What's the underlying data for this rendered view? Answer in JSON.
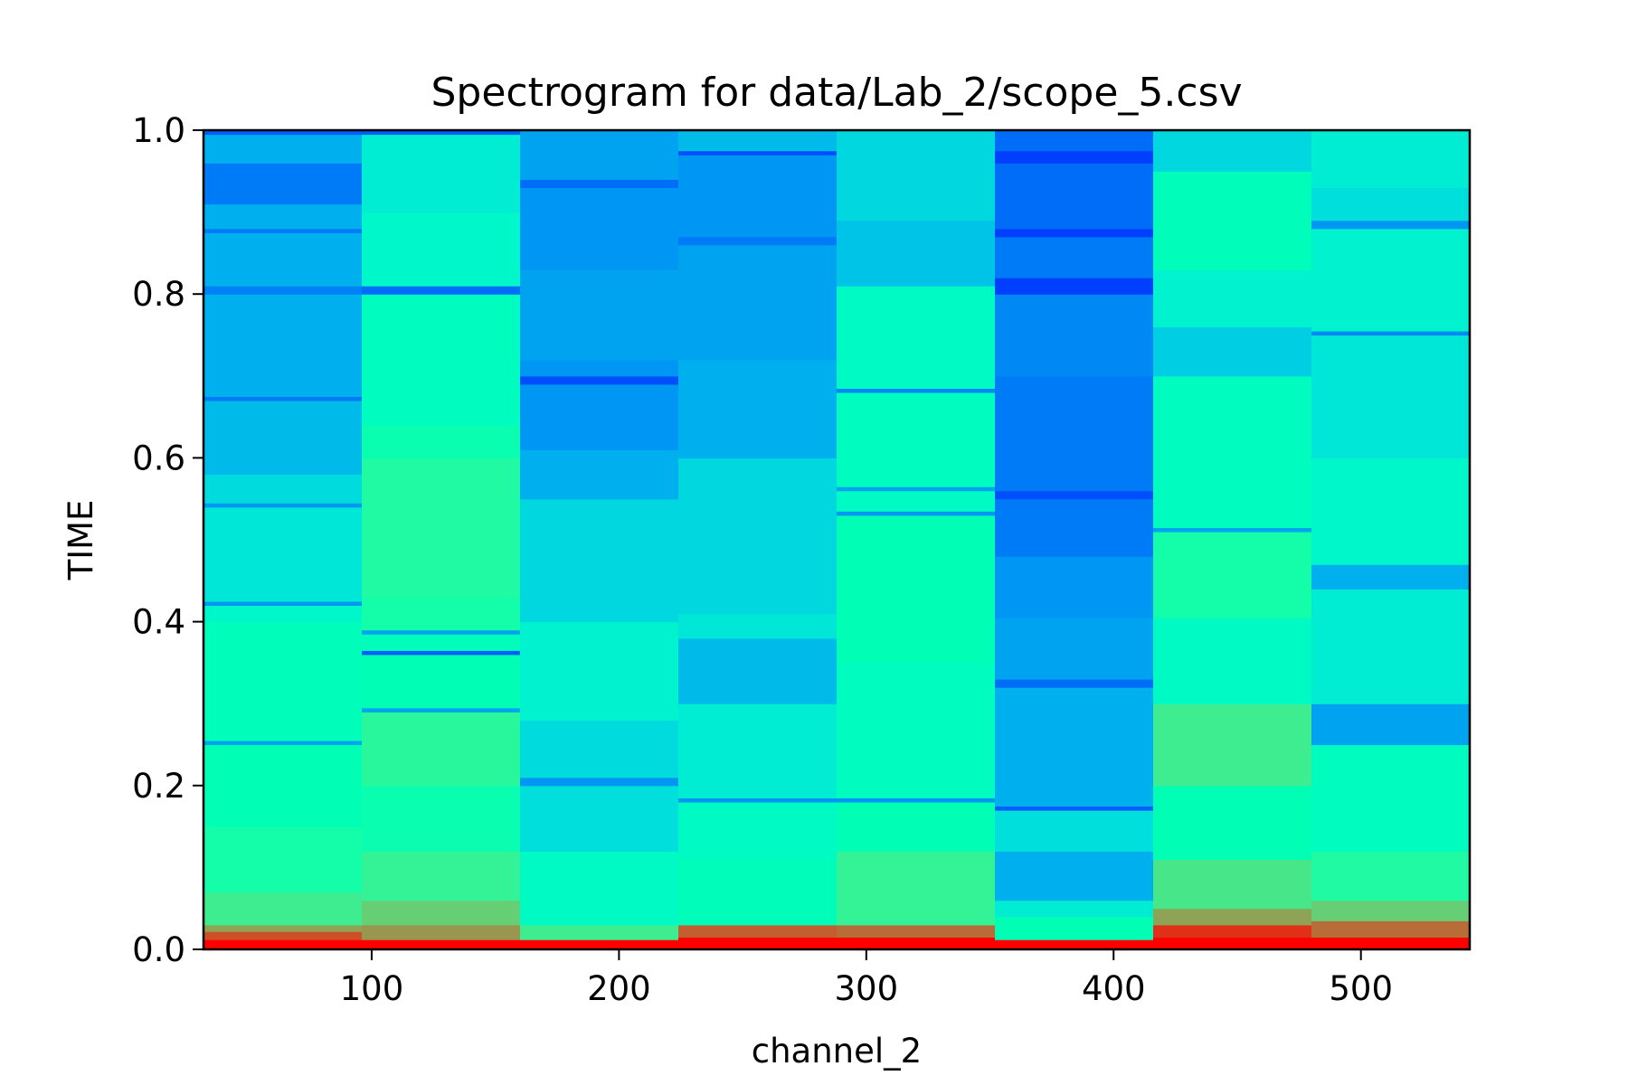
{
  "chart_data": {
    "type": "heatmap",
    "title": "Spectrogram for data/Lab_2/scope_5.csv",
    "xlabel": "channel_2",
    "ylabel": "TIME",
    "xlim": [
      32,
      544
    ],
    "ylim": [
      0.0,
      1.0
    ],
    "x_ticks": [
      100,
      200,
      300,
      400,
      500
    ],
    "x_tick_labels": [
      "100",
      "200",
      "300",
      "400",
      "500"
    ],
    "y_ticks": [
      0.0,
      0.2,
      0.4,
      0.6,
      0.8,
      1.0
    ],
    "y_tick_labels": [
      "0.0",
      "0.2",
      "0.4",
      "0.6",
      "0.8",
      "1.0"
    ],
    "colormap": "rainbow",
    "columns": [
      {
        "x_start": 32,
        "x_end": 96,
        "bands": [
          {
            "from": 0.0,
            "to": 0.012,
            "v": 1.0
          },
          {
            "from": 0.012,
            "to": 0.022,
            "v": 0.9
          },
          {
            "from": 0.022,
            "to": 0.03,
            "v": 0.78
          },
          {
            "from": 0.03,
            "to": 0.04,
            "v": 0.62
          },
          {
            "from": 0.04,
            "to": 0.07,
            "v": 0.62
          },
          {
            "from": 0.07,
            "to": 0.15,
            "v": 0.54
          },
          {
            "from": 0.15,
            "to": 0.25,
            "v": 0.5
          },
          {
            "from": 0.25,
            "to": 0.255,
            "v": 0.22
          },
          {
            "from": 0.255,
            "to": 0.4,
            "v": 0.48
          },
          {
            "from": 0.4,
            "to": 0.42,
            "v": 0.42
          },
          {
            "from": 0.42,
            "to": 0.425,
            "v": 0.2
          },
          {
            "from": 0.425,
            "to": 0.54,
            "v": 0.36
          },
          {
            "from": 0.54,
            "to": 0.545,
            "v": 0.2
          },
          {
            "from": 0.545,
            "to": 0.58,
            "v": 0.33
          },
          {
            "from": 0.58,
            "to": 0.67,
            "v": 0.26
          },
          {
            "from": 0.67,
            "to": 0.675,
            "v": 0.16
          },
          {
            "from": 0.675,
            "to": 0.8,
            "v": 0.24
          },
          {
            "from": 0.8,
            "to": 0.81,
            "v": 0.17
          },
          {
            "from": 0.81,
            "to": 0.875,
            "v": 0.24
          },
          {
            "from": 0.875,
            "to": 0.88,
            "v": 0.16
          },
          {
            "from": 0.88,
            "to": 0.91,
            "v": 0.24
          },
          {
            "from": 0.91,
            "to": 0.96,
            "v": 0.16
          },
          {
            "from": 0.96,
            "to": 0.995,
            "v": 0.24
          },
          {
            "from": 0.995,
            "to": 1.0,
            "v": 0.12
          }
        ]
      },
      {
        "x_start": 96,
        "x_end": 160,
        "bands": [
          {
            "from": 0.0,
            "to": 0.012,
            "v": 1.0
          },
          {
            "from": 0.012,
            "to": 0.03,
            "v": 0.8
          },
          {
            "from": 0.03,
            "to": 0.06,
            "v": 0.7
          },
          {
            "from": 0.06,
            "to": 0.12,
            "v": 0.6
          },
          {
            "from": 0.12,
            "to": 0.2,
            "v": 0.52
          },
          {
            "from": 0.2,
            "to": 0.29,
            "v": 0.58
          },
          {
            "from": 0.29,
            "to": 0.295,
            "v": 0.22
          },
          {
            "from": 0.295,
            "to": 0.36,
            "v": 0.5
          },
          {
            "from": 0.36,
            "to": 0.365,
            "v": 0.12
          },
          {
            "from": 0.365,
            "to": 0.385,
            "v": 0.48
          },
          {
            "from": 0.385,
            "to": 0.39,
            "v": 0.22
          },
          {
            "from": 0.39,
            "to": 0.43,
            "v": 0.54
          },
          {
            "from": 0.43,
            "to": 0.6,
            "v": 0.56
          },
          {
            "from": 0.6,
            "to": 0.64,
            "v": 0.52
          },
          {
            "from": 0.64,
            "to": 0.8,
            "v": 0.46
          },
          {
            "from": 0.8,
            "to": 0.81,
            "v": 0.14
          },
          {
            "from": 0.81,
            "to": 0.9,
            "v": 0.42
          },
          {
            "from": 0.9,
            "to": 0.995,
            "v": 0.38
          },
          {
            "from": 0.995,
            "to": 1.0,
            "v": 0.12
          }
        ]
      },
      {
        "x_start": 160,
        "x_end": 224,
        "bands": [
          {
            "from": 0.0,
            "to": 0.012,
            "v": 1.0
          },
          {
            "from": 0.012,
            "to": 0.03,
            "v": 0.62
          },
          {
            "from": 0.03,
            "to": 0.12,
            "v": 0.44
          },
          {
            "from": 0.12,
            "to": 0.2,
            "v": 0.34
          },
          {
            "from": 0.2,
            "to": 0.21,
            "v": 0.2
          },
          {
            "from": 0.21,
            "to": 0.28,
            "v": 0.33
          },
          {
            "from": 0.28,
            "to": 0.4,
            "v": 0.4
          },
          {
            "from": 0.4,
            "to": 0.55,
            "v": 0.32
          },
          {
            "from": 0.55,
            "to": 0.61,
            "v": 0.24
          },
          {
            "from": 0.61,
            "to": 0.69,
            "v": 0.2
          },
          {
            "from": 0.69,
            "to": 0.7,
            "v": 0.1
          },
          {
            "from": 0.7,
            "to": 0.72,
            "v": 0.2
          },
          {
            "from": 0.72,
            "to": 0.83,
            "v": 0.22
          },
          {
            "from": 0.83,
            "to": 0.93,
            "v": 0.2
          },
          {
            "from": 0.93,
            "to": 0.94,
            "v": 0.14
          },
          {
            "from": 0.94,
            "to": 1.0,
            "v": 0.22
          }
        ]
      },
      {
        "x_start": 224,
        "x_end": 288,
        "bands": [
          {
            "from": 0.0,
            "to": 0.015,
            "v": 1.0
          },
          {
            "from": 0.015,
            "to": 0.03,
            "v": 0.88
          },
          {
            "from": 0.03,
            "to": 0.11,
            "v": 0.48
          },
          {
            "from": 0.11,
            "to": 0.18,
            "v": 0.44
          },
          {
            "from": 0.18,
            "to": 0.185,
            "v": 0.2
          },
          {
            "from": 0.185,
            "to": 0.3,
            "v": 0.38
          },
          {
            "from": 0.3,
            "to": 0.38,
            "v": 0.26
          },
          {
            "from": 0.38,
            "to": 0.41,
            "v": 0.36
          },
          {
            "from": 0.41,
            "to": 0.6,
            "v": 0.32
          },
          {
            "from": 0.6,
            "to": 0.72,
            "v": 0.24
          },
          {
            "from": 0.72,
            "to": 0.86,
            "v": 0.22
          },
          {
            "from": 0.86,
            "to": 0.87,
            "v": 0.16
          },
          {
            "from": 0.87,
            "to": 0.97,
            "v": 0.2
          },
          {
            "from": 0.97,
            "to": 0.975,
            "v": 0.1
          },
          {
            "from": 0.975,
            "to": 1.0,
            "v": 0.26
          }
        ]
      },
      {
        "x_start": 288,
        "x_end": 352,
        "bands": [
          {
            "from": 0.0,
            "to": 0.015,
            "v": 1.0
          },
          {
            "from": 0.015,
            "to": 0.03,
            "v": 0.86
          },
          {
            "from": 0.03,
            "to": 0.12,
            "v": 0.6
          },
          {
            "from": 0.12,
            "to": 0.18,
            "v": 0.5
          },
          {
            "from": 0.18,
            "to": 0.185,
            "v": 0.2
          },
          {
            "from": 0.185,
            "to": 0.35,
            "v": 0.46
          },
          {
            "from": 0.35,
            "to": 0.53,
            "v": 0.5
          },
          {
            "from": 0.53,
            "to": 0.535,
            "v": 0.2
          },
          {
            "from": 0.535,
            "to": 0.56,
            "v": 0.44
          },
          {
            "from": 0.56,
            "to": 0.565,
            "v": 0.22
          },
          {
            "from": 0.565,
            "to": 0.68,
            "v": 0.46
          },
          {
            "from": 0.68,
            "to": 0.685,
            "v": 0.18
          },
          {
            "from": 0.685,
            "to": 0.81,
            "v": 0.44
          },
          {
            "from": 0.81,
            "to": 0.89,
            "v": 0.28
          },
          {
            "from": 0.89,
            "to": 1.0,
            "v": 0.32
          }
        ]
      },
      {
        "x_start": 352,
        "x_end": 416,
        "bands": [
          {
            "from": 0.0,
            "to": 0.012,
            "v": 1.0
          },
          {
            "from": 0.012,
            "to": 0.04,
            "v": 0.5
          },
          {
            "from": 0.04,
            "to": 0.06,
            "v": 0.38
          },
          {
            "from": 0.06,
            "to": 0.12,
            "v": 0.24
          },
          {
            "from": 0.12,
            "to": 0.17,
            "v": 0.34
          },
          {
            "from": 0.17,
            "to": 0.175,
            "v": 0.12
          },
          {
            "from": 0.175,
            "to": 0.32,
            "v": 0.24
          },
          {
            "from": 0.32,
            "to": 0.33,
            "v": 0.14
          },
          {
            "from": 0.33,
            "to": 0.405,
            "v": 0.22
          },
          {
            "from": 0.405,
            "to": 0.48,
            "v": 0.2
          },
          {
            "from": 0.48,
            "to": 0.55,
            "v": 0.16
          },
          {
            "from": 0.55,
            "to": 0.56,
            "v": 0.1
          },
          {
            "from": 0.56,
            "to": 0.7,
            "v": 0.16
          },
          {
            "from": 0.7,
            "to": 0.8,
            "v": 0.18
          },
          {
            "from": 0.8,
            "to": 0.82,
            "v": 0.08
          },
          {
            "from": 0.82,
            "to": 0.87,
            "v": 0.16
          },
          {
            "from": 0.87,
            "to": 0.88,
            "v": 0.08
          },
          {
            "from": 0.88,
            "to": 0.96,
            "v": 0.14
          },
          {
            "from": 0.96,
            "to": 0.975,
            "v": 0.08
          },
          {
            "from": 0.975,
            "to": 1.0,
            "v": 0.14
          }
        ]
      },
      {
        "x_start": 416,
        "x_end": 480,
        "bands": [
          {
            "from": 0.0,
            "to": 0.015,
            "v": 1.0
          },
          {
            "from": 0.015,
            "to": 0.03,
            "v": 0.94
          },
          {
            "from": 0.03,
            "to": 0.05,
            "v": 0.78
          },
          {
            "from": 0.05,
            "to": 0.11,
            "v": 0.64
          },
          {
            "from": 0.11,
            "to": 0.2,
            "v": 0.5
          },
          {
            "from": 0.2,
            "to": 0.3,
            "v": 0.62
          },
          {
            "from": 0.3,
            "to": 0.405,
            "v": 0.44
          },
          {
            "from": 0.405,
            "to": 0.51,
            "v": 0.54
          },
          {
            "from": 0.51,
            "to": 0.515,
            "v": 0.22
          },
          {
            "from": 0.515,
            "to": 0.7,
            "v": 0.46
          },
          {
            "from": 0.7,
            "to": 0.76,
            "v": 0.3
          },
          {
            "from": 0.76,
            "to": 0.83,
            "v": 0.4
          },
          {
            "from": 0.83,
            "to": 0.95,
            "v": 0.48
          },
          {
            "from": 0.95,
            "to": 1.0,
            "v": 0.32
          }
        ]
      },
      {
        "x_start": 480,
        "x_end": 544,
        "bands": [
          {
            "from": 0.0,
            "to": 0.015,
            "v": 1.0
          },
          {
            "from": 0.015,
            "to": 0.035,
            "v": 0.86
          },
          {
            "from": 0.035,
            "to": 0.06,
            "v": 0.7
          },
          {
            "from": 0.06,
            "to": 0.12,
            "v": 0.56
          },
          {
            "from": 0.12,
            "to": 0.25,
            "v": 0.46
          },
          {
            "from": 0.25,
            "to": 0.3,
            "v": 0.22
          },
          {
            "from": 0.3,
            "to": 0.44,
            "v": 0.38
          },
          {
            "from": 0.44,
            "to": 0.47,
            "v": 0.24
          },
          {
            "from": 0.47,
            "to": 0.6,
            "v": 0.42
          },
          {
            "from": 0.6,
            "to": 0.75,
            "v": 0.36
          },
          {
            "from": 0.75,
            "to": 0.755,
            "v": 0.18
          },
          {
            "from": 0.755,
            "to": 0.88,
            "v": 0.4
          },
          {
            "from": 0.88,
            "to": 0.89,
            "v": 0.2
          },
          {
            "from": 0.89,
            "to": 0.93,
            "v": 0.34
          },
          {
            "from": 0.93,
            "to": 1.0,
            "v": 0.38
          }
        ]
      }
    ]
  }
}
